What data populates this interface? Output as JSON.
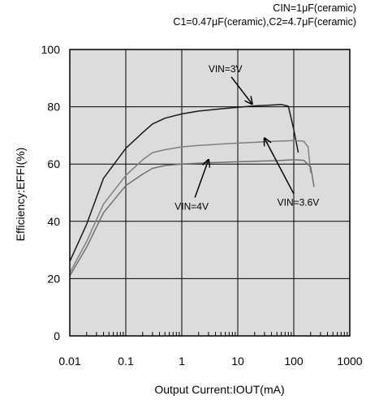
{
  "chart_data": {
    "type": "line",
    "title": "",
    "subtitle_lines": [
      "CIN=1μF(ceramic)",
      "C1=0.47μF(ceramic),C2=4.7μF(ceramic)"
    ],
    "xlabel": "Output Current:IOUT(mA)",
    "ylabel": "Efficiency:EFFI(%)",
    "x_scale": "log",
    "xlim": [
      0.01,
      1000
    ],
    "ylim": [
      0,
      100
    ],
    "grid": true,
    "x_ticks": [
      0.01,
      0.1,
      1,
      10,
      100,
      1000
    ],
    "x_tick_labels": [
      "0.01",
      "0.1",
      "1",
      "10",
      "100",
      "1000"
    ],
    "y_ticks": [
      0,
      20,
      40,
      60,
      80,
      100
    ],
    "y_tick_labels": [
      "0",
      "20",
      "40",
      "60",
      "80",
      "100"
    ],
    "series": [
      {
        "name": "VIN=3V",
        "color": "#1a1a1a",
        "x": [
          0.01,
          0.02,
          0.04,
          0.1,
          0.2,
          0.3,
          0.5,
          1,
          2,
          5,
          10,
          20,
          40,
          60,
          80,
          100,
          120
        ],
        "y": [
          26,
          39,
          55,
          65.5,
          71,
          74,
          76,
          77.5,
          78.5,
          79.3,
          79.8,
          80.3,
          80.6,
          80.8,
          80.2,
          72,
          64
        ]
      },
      {
        "name": "VIN=3.6V",
        "color": "#808080",
        "x": [
          0.01,
          0.02,
          0.04,
          0.1,
          0.2,
          0.3,
          0.5,
          1,
          2,
          5,
          10,
          20,
          50,
          100,
          150,
          180,
          200
        ],
        "y": [
          22,
          33,
          46,
          56,
          61.5,
          64,
          65,
          66,
          66.5,
          67,
          67.3,
          67.6,
          68,
          68.2,
          68,
          66,
          57
        ]
      },
      {
        "name": "VIN=4V",
        "color": "#707070",
        "x": [
          0.01,
          0.02,
          0.04,
          0.1,
          0.2,
          0.3,
          0.5,
          1,
          2,
          5,
          10,
          20,
          50,
          100,
          150,
          200,
          230
        ],
        "y": [
          21,
          31,
          43,
          52.5,
          56.5,
          58.5,
          59.5,
          60,
          60.3,
          60.6,
          60.8,
          61,
          61.2,
          61.5,
          61.3,
          59,
          52
        ]
      }
    ],
    "annotations": [
      {
        "label": "VIN=3V",
        "tx": 6,
        "ty": 92,
        "ax": 18,
        "ay": 81
      },
      {
        "label": "VIN=3.6V",
        "tx": 120,
        "ty": 45.5,
        "ax": 30,
        "ay": 69
      },
      {
        "label": "VIN=4V",
        "tx": 1.5,
        "ty": 44,
        "ax": 3,
        "ay": 61.5
      }
    ]
  }
}
